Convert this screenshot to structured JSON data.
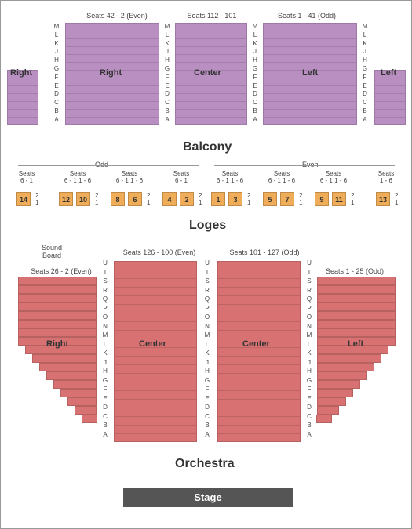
{
  "colors": {
    "balcony": "#b98fc2",
    "loges": "#f0ad59",
    "orchestra": "#d87272",
    "stage": "#555555",
    "border": "#999999"
  },
  "balcony": {
    "title": "Balcony",
    "headers": {
      "left": "Seats 42 - 2 (Even)",
      "center": "Seats 112 - 101",
      "right": "Seats 1 - 41 (Odd)"
    },
    "rows": [
      "M",
      "L",
      "K",
      "J",
      "H",
      "G",
      "F",
      "E",
      "D",
      "C",
      "B",
      "A"
    ],
    "sections": {
      "right_end": "Right",
      "right": "Right",
      "center": "Center",
      "left": "Left",
      "left_end": "Left"
    }
  },
  "loges": {
    "title": "Loges",
    "odd_label": "Odd",
    "even_label": "Even",
    "row_labels": [
      "2",
      "1"
    ],
    "groups": [
      {
        "seats_label": "Seats\n6 - 1",
        "boxes": [
          "14"
        ]
      },
      {
        "seats_label": "Seats\n6 - 1 1 - 6",
        "boxes": [
          "12",
          "10"
        ]
      },
      {
        "seats_label": "Seats\n6 - 1 1 - 6",
        "boxes": [
          "8",
          "6"
        ]
      },
      {
        "seats_label": "Seats\n6 - 1",
        "boxes": [
          "4",
          "2"
        ]
      },
      {
        "seats_label": "Seats\n6 - 1 1 - 6",
        "boxes": [
          "1",
          "3"
        ]
      },
      {
        "seats_label": "Seats\n6 - 1 1 - 6",
        "boxes": [
          "5",
          "7"
        ]
      },
      {
        "seats_label": "Seats\n6 - 1 1 - 6",
        "boxes": [
          "9",
          "11"
        ]
      },
      {
        "seats_label": "Seats\n1 - 6",
        "boxes": [
          "13"
        ]
      }
    ]
  },
  "orchestra": {
    "title": "Orchestra",
    "sound_board": "Sound\nBoard",
    "headers": {
      "even": "Seats 26 - 2 (Even)",
      "center_left": "Seats 126 - 100 (Even)",
      "center_right": "Seats 101 - 127 (Odd)",
      "odd": "Seats 1 - 25 (Odd)"
    },
    "rows": [
      "U",
      "T",
      "S",
      "R",
      "Q",
      "P",
      "O",
      "N",
      "M",
      "L",
      "K",
      "J",
      "H",
      "G",
      "F",
      "E",
      "D",
      "C",
      "B",
      "A"
    ],
    "sections": {
      "right": "Right",
      "center_left": "Center",
      "center_right": "Center",
      "left": "Left"
    }
  },
  "stage": {
    "label": "Stage"
  }
}
